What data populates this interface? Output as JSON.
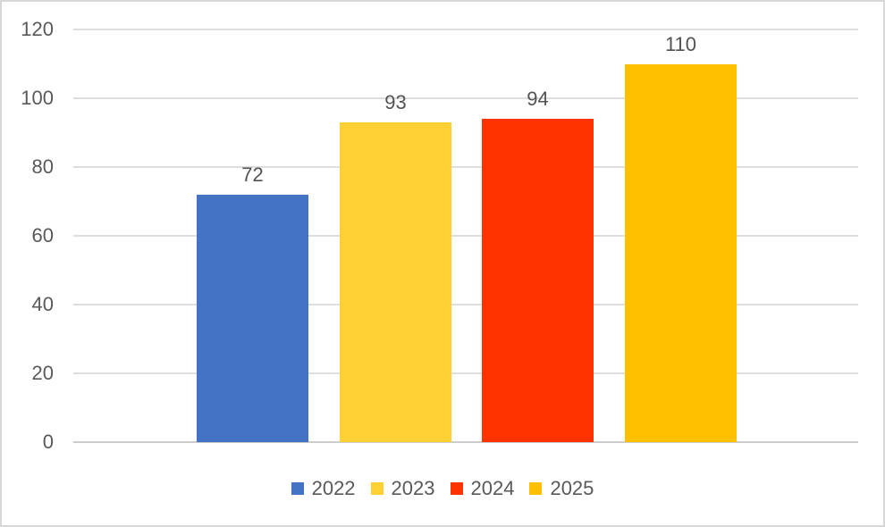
{
  "chart_data": {
    "type": "bar",
    "title": "",
    "xlabel": "",
    "ylabel": "",
    "ylim": [
      0,
      120
    ],
    "yticks": [
      "0",
      "20",
      "40",
      "60",
      "80",
      "100",
      "120"
    ],
    "grid": true,
    "data_labels": true,
    "legend_position": "bottom",
    "series": [
      {
        "name": "2022",
        "value": 72,
        "label": "72",
        "color": "#4472c4"
      },
      {
        "name": "2023",
        "value": 93,
        "label": "93",
        "color": "#ffd034"
      },
      {
        "name": "2024",
        "value": 94,
        "label": "94",
        "color": "#ff3300"
      },
      {
        "name": "2025",
        "value": 110,
        "label": "110",
        "color": "#ffc000"
      }
    ],
    "text_color": "#595959",
    "gridline_color": "#dedede"
  }
}
